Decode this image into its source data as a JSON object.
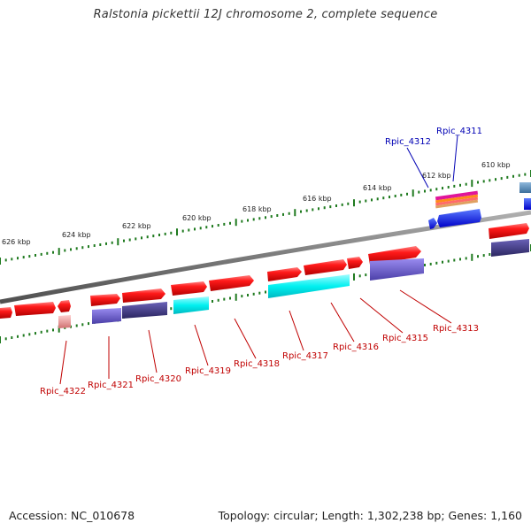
{
  "title": "Ralstonia pickettii 12J chromosome 2, complete sequence",
  "footer": {
    "accession": "Accession: NC_010678",
    "summary": "Topology: circular; Length: 1,302,238 bp; Genes: 1,160"
  },
  "colors": {
    "backbone": "#808080",
    "forward_gene": "#ff1a1a",
    "reverse_gene": "#ff1a1a",
    "cds_purple": "#6a5acd",
    "cds_dark": "#3b3580",
    "cds_cyan": "#00ffff",
    "rna_light": "#f4a6a6",
    "steelblue": "#4682b4",
    "blue": "#0000ff",
    "tick": "#1f7a1f",
    "label_red": "#c00000",
    "label_blue": "#0000b4"
  },
  "scale_labels": [
    "610 kbp",
    "612 kbp",
    "614 kbp",
    "616 kbp",
    "618 kbp",
    "620 kbp",
    "622 kbp",
    "624 kbp",
    "626 kbp"
  ],
  "gene_labels": [
    {
      "text": "Rpic_4311",
      "color": "blue"
    },
    {
      "text": "Rpic_4312",
      "color": "blue"
    },
    {
      "text": "Rpic_4313",
      "color": "red"
    },
    {
      "text": "Rpic_4315",
      "color": "red"
    },
    {
      "text": "Rpic_4316",
      "color": "red"
    },
    {
      "text": "Rpic_4317",
      "color": "red"
    },
    {
      "text": "Rpic_4318",
      "color": "red"
    },
    {
      "text": "Rpic_4319",
      "color": "red"
    },
    {
      "text": "Rpic_4320",
      "color": "red"
    },
    {
      "text": "Rpic_4321",
      "color": "red"
    },
    {
      "text": "Rpic_4322",
      "color": "red"
    }
  ]
}
